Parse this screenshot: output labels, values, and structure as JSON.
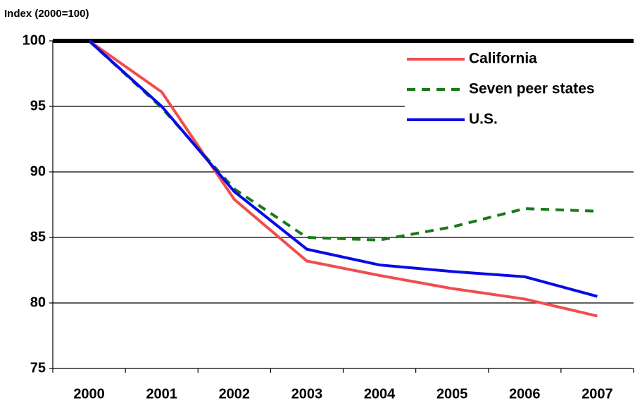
{
  "chart_data": {
    "type": "line",
    "y_axis_label": "Index (2000=100)",
    "categories": [
      "2000",
      "2001",
      "2002",
      "2003",
      "2004",
      "2005",
      "2006",
      "2007"
    ],
    "series": [
      {
        "name": "California",
        "color": "#f04e4e",
        "dash": false,
        "values": [
          100,
          96.1,
          87.9,
          83.2,
          82.1,
          81.1,
          80.3,
          79.0
        ]
      },
      {
        "name": "Seven peer states",
        "color": "#1a7a1a",
        "dash": true,
        "values": [
          100,
          94.9,
          88.7,
          85.0,
          84.8,
          85.8,
          87.2,
          87.0
        ]
      },
      {
        "name": "U.S.",
        "color": "#0a0ae6",
        "dash": false,
        "values": [
          100,
          95.0,
          88.5,
          84.1,
          82.9,
          82.4,
          82.0,
          80.5
        ]
      }
    ],
    "ylim": [
      75,
      100
    ],
    "yticks": [
      75,
      80,
      85,
      90,
      95,
      100
    ],
    "grid": true,
    "legend": "top-right"
  }
}
